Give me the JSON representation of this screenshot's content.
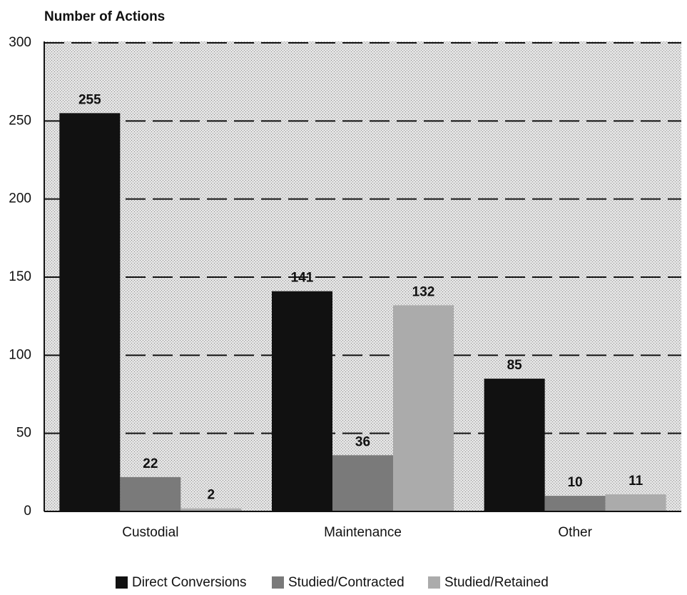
{
  "chart_data": {
    "type": "bar",
    "y_label": "Number of Actions",
    "categories": [
      "Custodial",
      "Maintenance",
      "Other"
    ],
    "series": [
      {
        "name": "Direct Conversions",
        "color": "#111111",
        "values": [
          255,
          141,
          85
        ]
      },
      {
        "name": "Studied/Contracted",
        "color": "#7a7a7a",
        "values": [
          22,
          36,
          10
        ]
      },
      {
        "name": "Studied/Retained",
        "color": "#ababab",
        "values": [
          2,
          132,
          11
        ]
      }
    ],
    "ylim": [
      0,
      300
    ],
    "yticks": [
      0,
      50,
      100,
      150,
      200,
      250,
      300
    ],
    "grid": true,
    "legend": "bottom"
  }
}
